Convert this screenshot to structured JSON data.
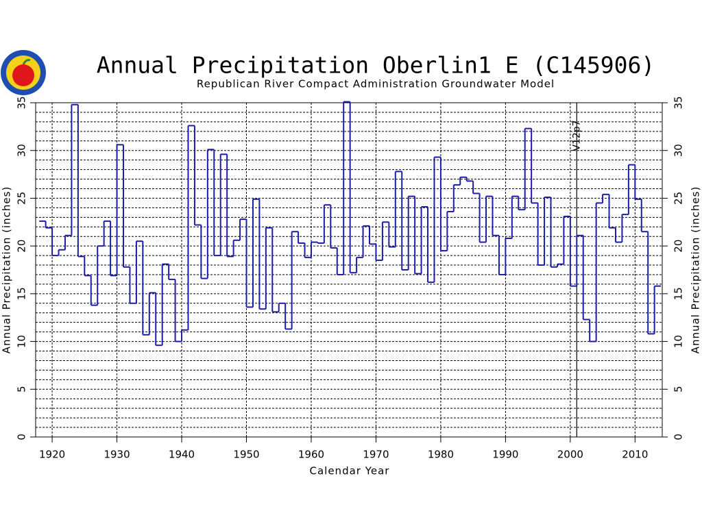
{
  "chart_data": {
    "type": "step",
    "title": "Annual Precipitation Oberlin1 E (C145906)",
    "subtitle": "Republican River Compact Administration Groundwater Model",
    "xlabel": "Calendar Year",
    "ylabel": "Annual Precipitation (inches)",
    "y2label": "Annual Precipitation (inches)",
    "x": [
      1918,
      1919,
      1920,
      1921,
      1922,
      1923,
      1924,
      1925,
      1926,
      1927,
      1928,
      1929,
      1930,
      1931,
      1932,
      1933,
      1934,
      1935,
      1936,
      1937,
      1938,
      1939,
      1940,
      1941,
      1942,
      1943,
      1944,
      1945,
      1946,
      1947,
      1948,
      1949,
      1950,
      1951,
      1952,
      1953,
      1954,
      1955,
      1956,
      1957,
      1958,
      1959,
      1960,
      1961,
      1962,
      1963,
      1964,
      1965,
      1966,
      1967,
      1968,
      1969,
      1970,
      1971,
      1972,
      1973,
      1974,
      1975,
      1976,
      1977,
      1978,
      1979,
      1980,
      1981,
      1982,
      1983,
      1984,
      1985,
      1986,
      1987,
      1988,
      1989,
      1990,
      1991,
      1992,
      1993,
      1994,
      1995,
      1996,
      1997,
      1998,
      1999,
      2000,
      2001,
      2002,
      2003,
      2004,
      2005,
      2006,
      2007,
      2008,
      2009,
      2010,
      2011,
      2012,
      2013
    ],
    "values": [
      22.6,
      21.9,
      19.0,
      19.6,
      21.1,
      34.8,
      18.9,
      16.9,
      13.8,
      20.0,
      22.6,
      16.9,
      30.6,
      17.8,
      14.0,
      20.5,
      10.7,
      15.1,
      9.6,
      18.1,
      16.5,
      10.0,
      11.2,
      32.6,
      22.2,
      16.6,
      30.1,
      19.0,
      29.6,
      18.9,
      20.6,
      22.8,
      13.6,
      24.9,
      13.4,
      21.9,
      13.1,
      14.0,
      11.3,
      21.5,
      20.3,
      18.8,
      20.4,
      20.3,
      24.3,
      19.8,
      17.0,
      35.1,
      17.2,
      18.8,
      22.1,
      20.2,
      18.5,
      22.5,
      19.9,
      27.8,
      17.5,
      25.2,
      17.1,
      24.1,
      16.2,
      29.3,
      19.5,
      23.6,
      26.4,
      27.2,
      26.8,
      25.5,
      20.4,
      25.2,
      21.1,
      17.0,
      20.8,
      25.2,
      23.8,
      32.3,
      24.5,
      18.0,
      25.1,
      17.8,
      18.1,
      23.1,
      15.8,
      21.1,
      12.3,
      10.0,
      24.5,
      25.4,
      21.9,
      20.4,
      23.3,
      28.5,
      24.9,
      21.5,
      10.8,
      15.8
    ],
    "color": "#1c1caa",
    "xlim": [
      1917.45,
      2014.2
    ],
    "xticks": [
      1920,
      1930,
      1940,
      1950,
      1960,
      1970,
      1980,
      1990,
      2000,
      2010
    ],
    "ylim": [
      0,
      35
    ],
    "yticks": [
      0,
      5,
      10,
      15,
      20,
      25,
      30,
      35
    ],
    "y2lim": [
      0,
      35
    ],
    "y2ticks": [
      0,
      5,
      10,
      15,
      20,
      25,
      30,
      35
    ],
    "y_minor_ticks": [
      1,
      2,
      3,
      4,
      6,
      7,
      8,
      9,
      11,
      12,
      13,
      14,
      16,
      17,
      18,
      19,
      21,
      22,
      23,
      24,
      26,
      27,
      28,
      29,
      31,
      32,
      33,
      34
    ],
    "grid": true,
    "annotation": {
      "x": 2001,
      "label": "V12p7"
    }
  }
}
